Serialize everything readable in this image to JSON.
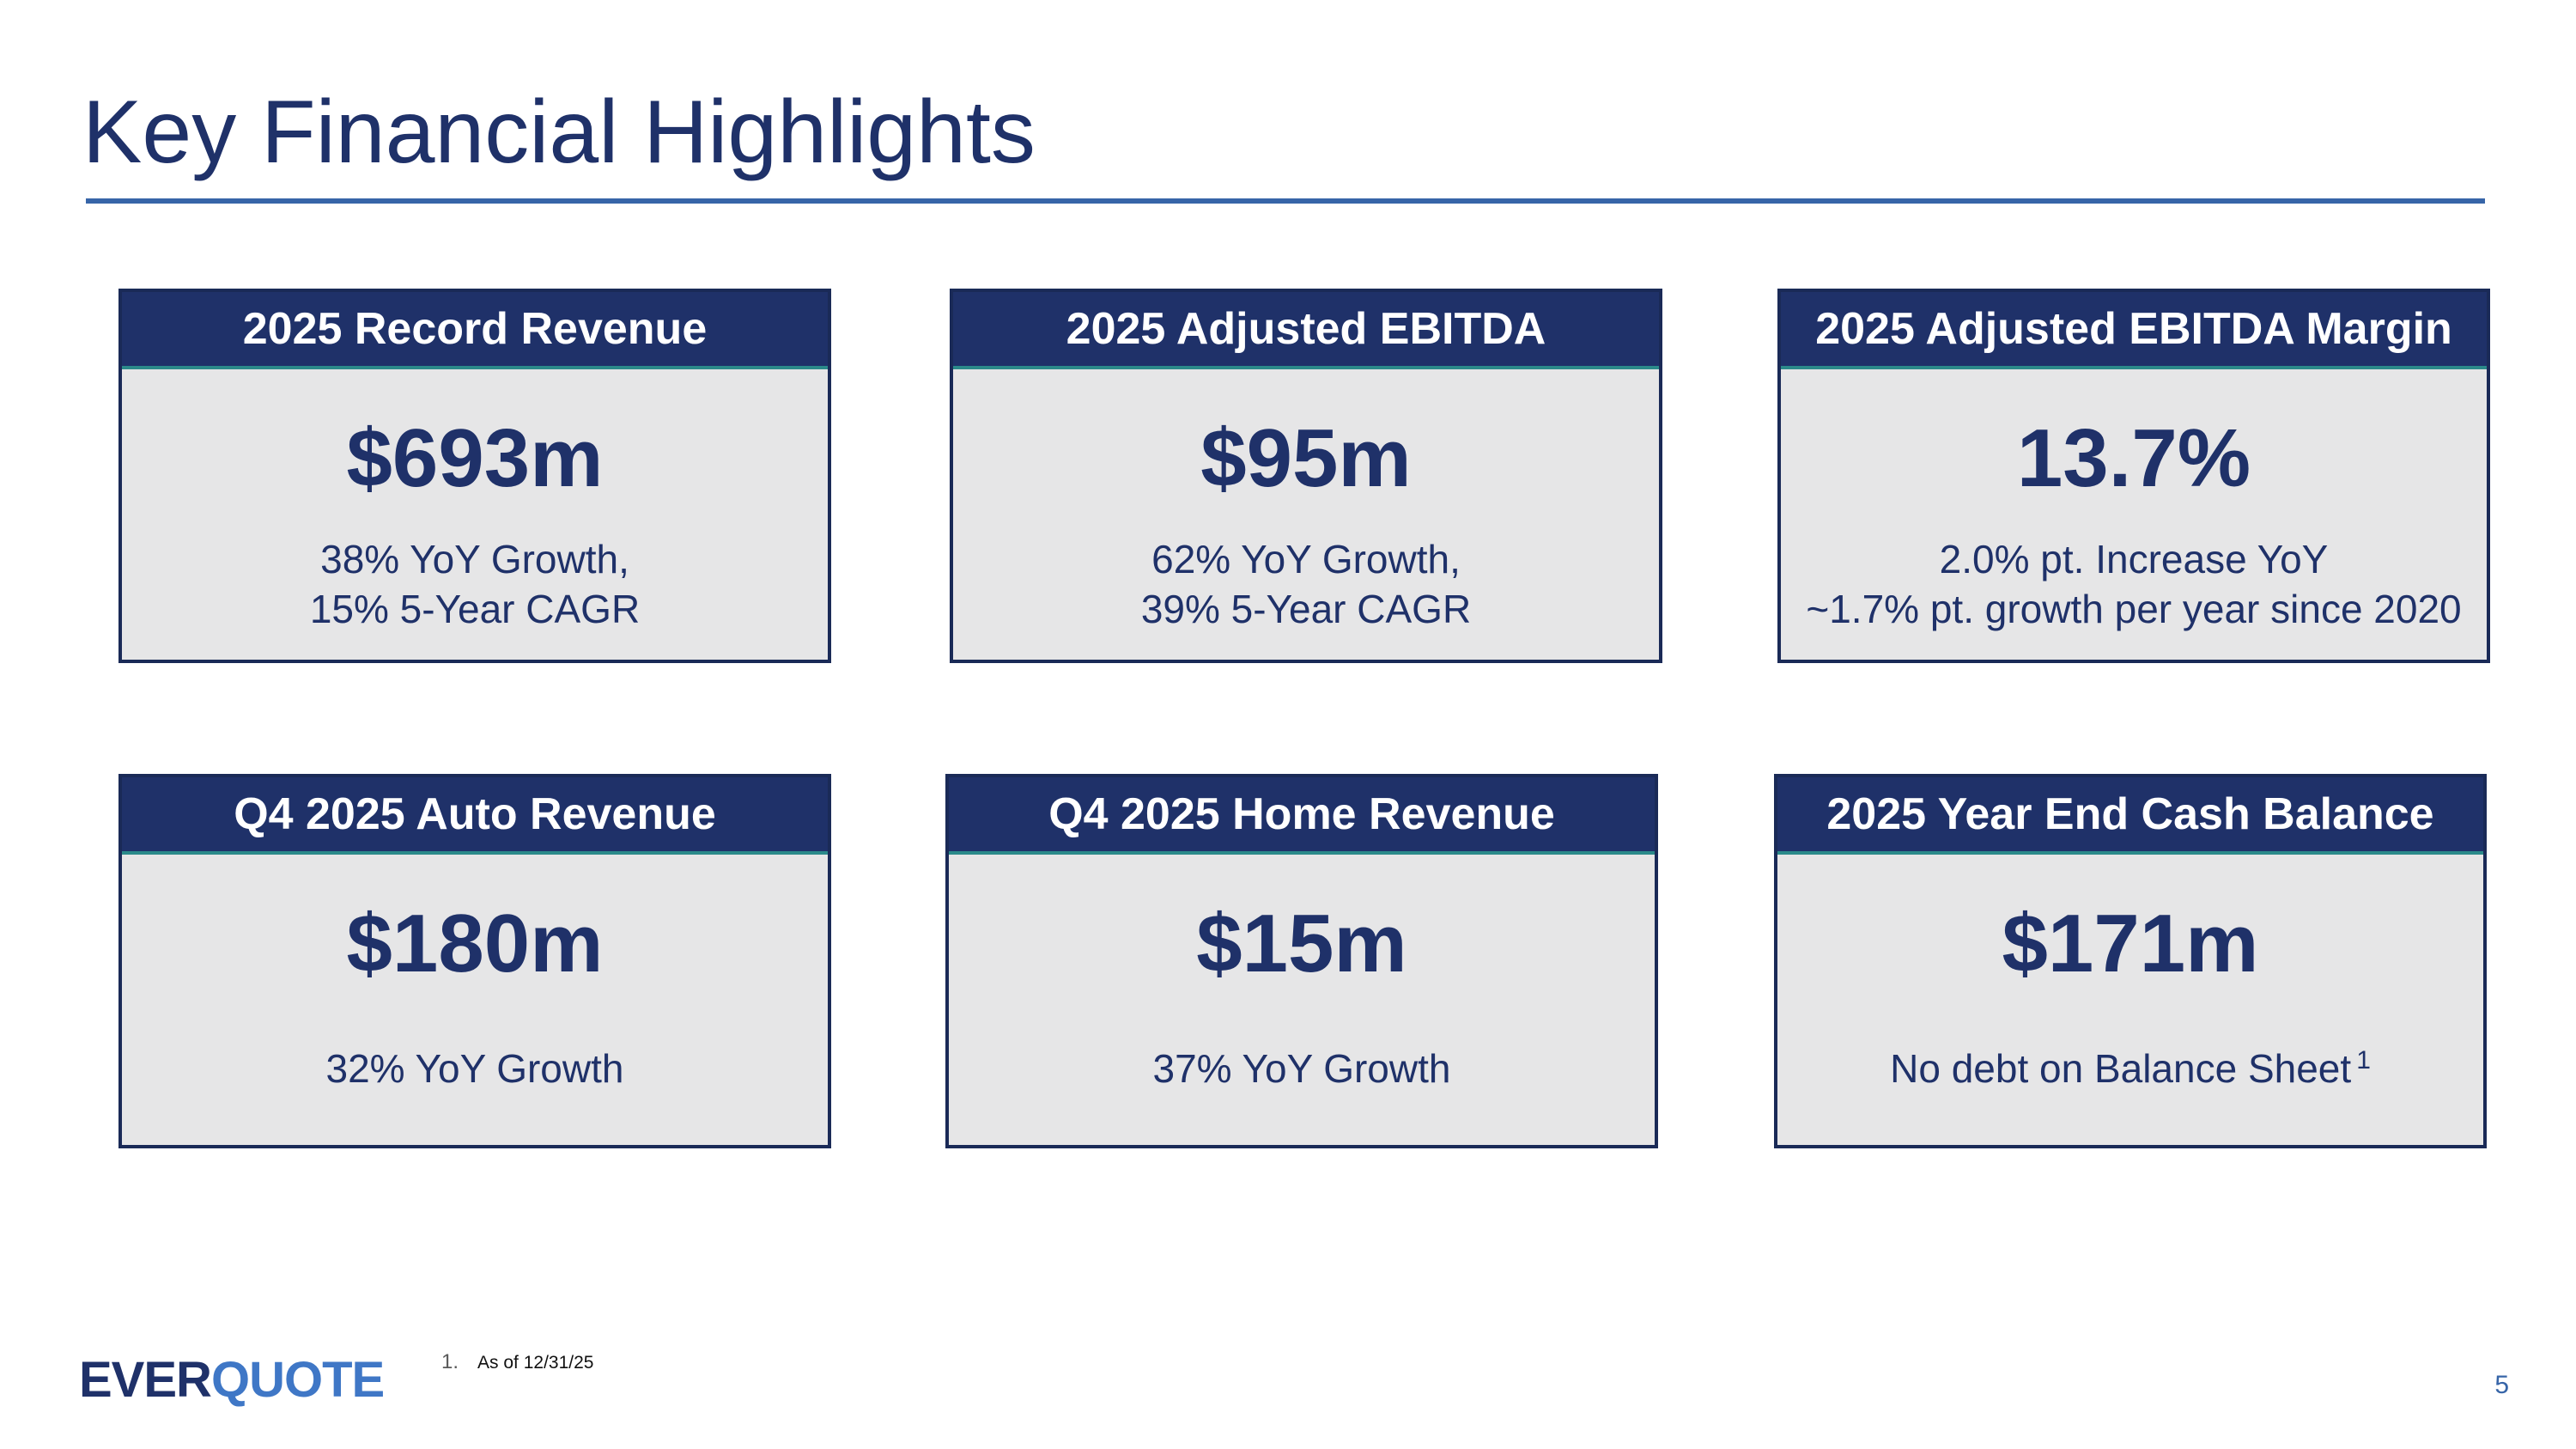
{
  "title": "Key Financial Highlights",
  "cards": [
    {
      "header": "2025 Record Revenue",
      "value": "$693m",
      "sub": [
        "38% YoY Growth,",
        "15% 5-Year CAGR"
      ]
    },
    {
      "header": "2025 Adjusted EBITDA",
      "value": "$95m",
      "sub": [
        "62% YoY Growth,",
        "39% 5-Year CAGR"
      ]
    },
    {
      "header": "2025 Adjusted EBITDA Margin",
      "value": "13.7%",
      "sub": [
        "2.0% pt. Increase YoY",
        "~1.7% pt. growth per year since 2020"
      ]
    },
    {
      "header": "Q4 2025 Auto Revenue",
      "value": "$180m",
      "sub": [
        "32% YoY Growth"
      ]
    },
    {
      "header": "Q4 2025 Home Revenue",
      "value": "$15m",
      "sub": [
        "37% YoY Growth"
      ]
    },
    {
      "header": "2025 Year End Cash Balance",
      "value": "$171m",
      "sub": [
        "No debt on Balance Sheet"
      ],
      "sub_sup": "1"
    }
  ],
  "logo": {
    "part1": "EVER",
    "part2": "QUOTE"
  },
  "footnote": {
    "number": "1.",
    "text": "As of 12/31/25"
  },
  "page_number": "5",
  "colors": {
    "primary_navy": "#1f3169",
    "accent_blue": "#3765a8",
    "card_background": "#e6e6e7",
    "logo_quote_blue": "#3f77c6"
  }
}
